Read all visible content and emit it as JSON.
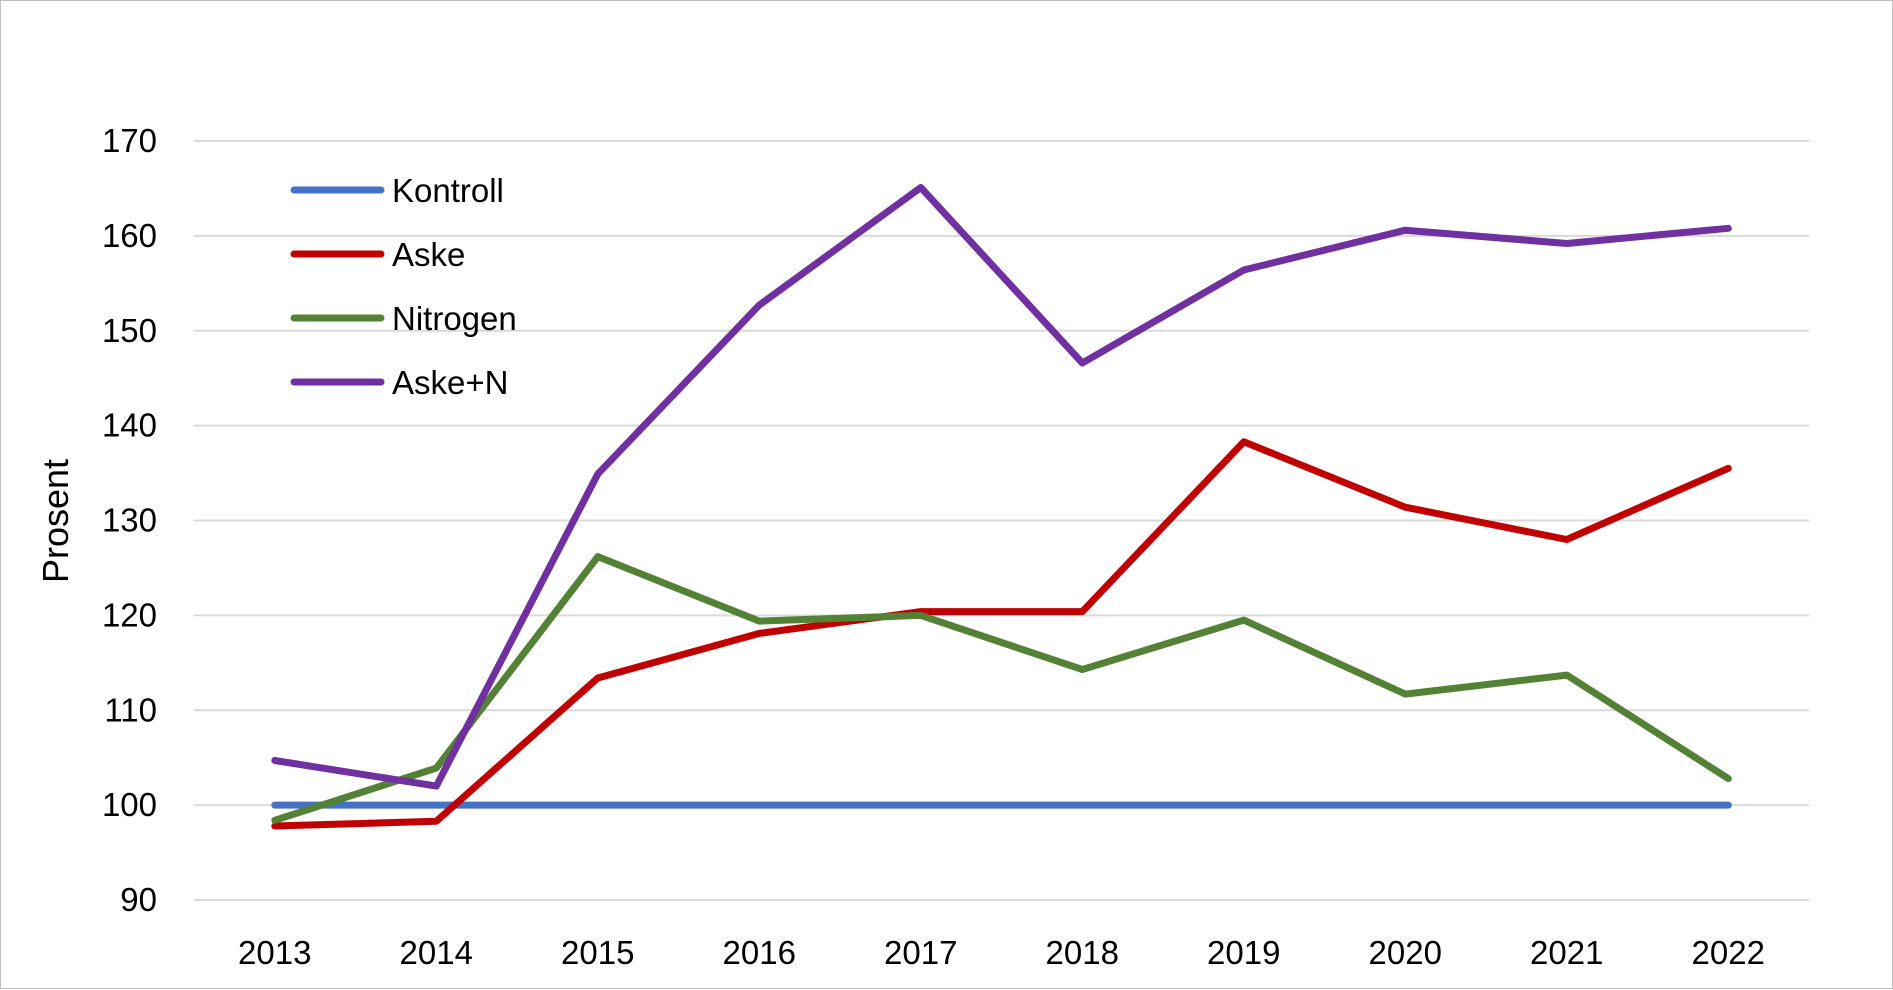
{
  "chart_data": {
    "type": "line",
    "title": "",
    "xlabel": "",
    "ylabel": "Prosent",
    "ylim": [
      90,
      170
    ],
    "yticks": [
      90,
      100,
      110,
      120,
      130,
      140,
      150,
      160,
      170
    ],
    "grid": "horizontal",
    "legend_position": "top-left",
    "x": [
      "2013",
      "2014",
      "2015",
      "2016",
      "2017",
      "2018",
      "2019",
      "2020",
      "2021",
      "2022"
    ],
    "series": [
      {
        "name": "Kontroll",
        "color": "#4472c4",
        "values": [
          100,
          100,
          100,
          100,
          100,
          100,
          100,
          100,
          100,
          100
        ]
      },
      {
        "name": "Aske",
        "color": "#c00000",
        "values": [
          97.8,
          98.3,
          113.4,
          118.1,
          120.4,
          120.4,
          138.3,
          131.4,
          128.0,
          135.5
        ]
      },
      {
        "name": "Nitrogen",
        "color": "#538135",
        "values": [
          98.4,
          103.9,
          126.2,
          119.4,
          120.0,
          114.3,
          119.5,
          111.7,
          113.7,
          102.8
        ]
      },
      {
        "name": "Aske+N",
        "color": "#7030a0",
        "values": [
          104.7,
          102.0,
          134.9,
          152.7,
          165.1,
          146.6,
          156.4,
          160.6,
          159.2,
          160.8
        ]
      }
    ]
  }
}
